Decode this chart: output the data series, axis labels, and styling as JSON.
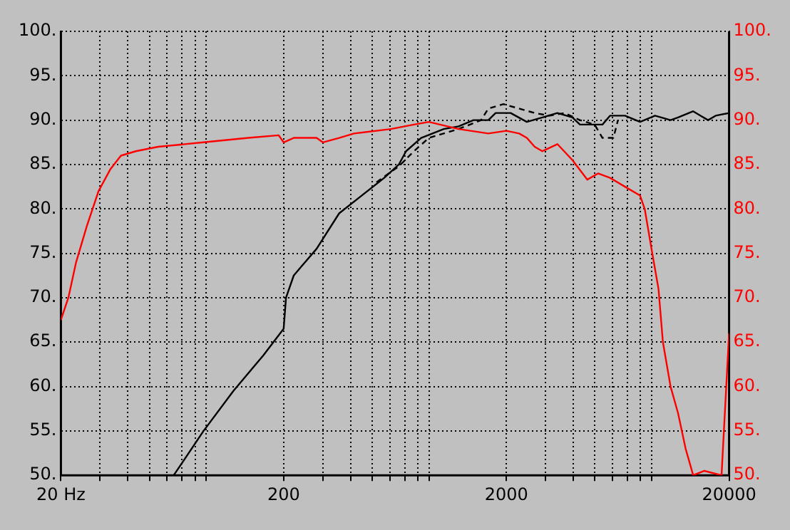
{
  "chart_data": {
    "type": "line",
    "xlim": [
      20,
      20000
    ],
    "xticks": [
      {
        "value": 20,
        "label": "20 Hz"
      },
      {
        "value": 30,
        "label": null
      },
      {
        "value": 40,
        "label": null
      },
      {
        "value": 50,
        "label": null
      },
      {
        "value": 60,
        "label": null
      },
      {
        "value": 70,
        "label": null
      },
      {
        "value": 80,
        "label": null
      },
      {
        "value": 90,
        "label": null
      },
      200,
      {
        "value": 300,
        "label": null
      },
      {
        "value": 400,
        "label": null
      },
      {
        "value": 500,
        "label": null
      },
      {
        "value": 600,
        "label": null
      },
      {
        "value": 700,
        "label": null
      },
      {
        "value": 800,
        "label": null
      },
      {
        "value": 900,
        "label": null
      },
      2000,
      {
        "value": 3000,
        "label": null
      },
      {
        "value": 4000,
        "label": null
      },
      {
        "value": 5000,
        "label": null
      },
      {
        "value": 6000,
        "label": null
      },
      {
        "value": 7000,
        "label": null
      },
      {
        "value": 8000,
        "label": null
      },
      {
        "value": 9000,
        "label": null
      },
      20000
    ],
    "ylim": [
      50,
      100
    ],
    "yticks": [
      {
        "value": 50,
        "label": "50."
      },
      {
        "value": 55,
        "label": "55."
      },
      {
        "value": 60,
        "label": "60."
      },
      {
        "value": 65,
        "label": "65."
      },
      {
        "value": 70,
        "label": "70."
      },
      {
        "value": 75,
        "label": "75."
      },
      {
        "value": 80,
        "label": "80."
      },
      {
        "value": 85,
        "label": "85."
      },
      {
        "value": 90,
        "label": "90."
      },
      {
        "value": 95,
        "label": "95."
      },
      {
        "value": 100,
        "label": "100."
      }
    ],
    "y2lim": [
      50,
      100
    ],
    "y2ticks": [
      {
        "value": 50,
        "label": "50."
      },
      {
        "value": 55,
        "label": "55."
      },
      {
        "value": 60,
        "label": "60."
      },
      {
        "value": 65,
        "label": "65."
      },
      {
        "value": 70,
        "label": "70."
      },
      {
        "value": 75,
        "label": "75."
      },
      {
        "value": 80,
        "label": "80."
      },
      {
        "value": 85,
        "label": "85."
      },
      {
        "value": 90,
        "label": "90."
      },
      {
        "value": 95,
        "label": "95."
      },
      {
        "value": 100,
        "label": "100."
      }
    ],
    "log": "x",
    "grid": true,
    "legend": false,
    "marker": "none",
    "series": [
      {
        "color": "#ff0000",
        "axis": "y2",
        "line_style": "solid",
        "x": [
          20,
          21.6,
          23.4,
          26.1,
          29.5,
          33.4,
          37.2,
          43.4,
          54.7,
          87.4,
          139,
          190,
          200,
          222,
          281,
          300,
          355,
          414,
          606,
          769,
          898,
          1221,
          1660,
          2000,
          2282,
          2471,
          2680,
          2900,
          3390,
          3960,
          4620,
          5160,
          5840,
          6820,
          7970,
          8360,
          9040,
          9640,
          10090,
          10920,
          11800,
          12760,
          13800,
          15500,
          18500,
          20000
        ],
        "values": [
          67.5,
          70,
          74,
          78,
          82,
          84.5,
          86,
          86.5,
          87,
          87.5,
          88,
          88.3,
          87.5,
          88,
          88,
          87.5,
          88,
          88.5,
          89,
          89.5,
          89.8,
          89,
          88.5,
          88.8,
          88.5,
          88,
          87,
          86.5,
          87.3,
          85.5,
          83.3,
          84,
          83.5,
          82.5,
          81.5,
          80,
          75,
          71,
          65,
          60,
          57,
          53,
          50,
          50.5,
          50,
          66
        ]
      },
      {
        "color": "#000000",
        "axis": "y",
        "line_style": "solid",
        "x": [
          64.2,
          87.4,
          119,
          162,
          200,
          205,
          222,
          240,
          281,
          355,
          448,
          566,
          658,
          709,
          829,
          1047,
          1221,
          1424,
          1660,
          1790,
          2090,
          2471,
          2900,
          3390,
          3960,
          4280,
          5400,
          5840,
          6820,
          7970,
          9300,
          10920,
          11800,
          13800,
          14900,
          16100,
          17400,
          20000
        ],
        "values": [
          50,
          55,
          59.5,
          63.5,
          66.5,
          70,
          72.5,
          73.5,
          75.5,
          79.5,
          81.5,
          83.5,
          85,
          86.5,
          88,
          89,
          89.3,
          90,
          90,
          90.8,
          90.8,
          89.8,
          90.3,
          90.8,
          90.3,
          89.5,
          89.5,
          90.5,
          90.5,
          89.8,
          90.5,
          90,
          90.3,
          91,
          90.5,
          90,
          90.5,
          90.8
        ]
      },
      {
        "color": "#000000",
        "axis": "y",
        "line_style": "dashed",
        "x": [
          522,
          658,
          769,
          898,
          1047,
          1221,
          1540,
          1660,
          1940,
          2282,
          2680,
          3130,
          3650,
          4280,
          4980,
          5400,
          6050,
          6340
        ],
        "values": [
          83,
          84.8,
          86.5,
          88,
          88.5,
          89,
          90,
          91.3,
          91.8,
          91.3,
          90.8,
          90.5,
          90.8,
          90,
          89.5,
          88,
          88,
          90
        ]
      }
    ]
  }
}
